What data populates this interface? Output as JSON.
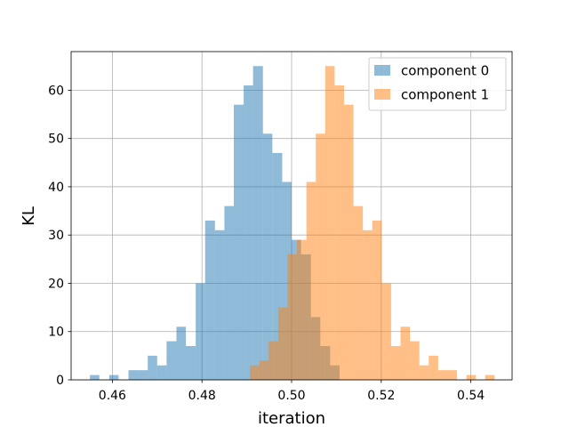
{
  "chart_data": {
    "type": "bar",
    "subtype": "overlapping-histogram",
    "xlabel": "iteration",
    "ylabel": "KL",
    "xlim": [
      0.4508,
      0.5492
    ],
    "ylim": [
      0,
      68
    ],
    "xticks": [
      0.46,
      0.48,
      0.5,
      0.52,
      0.54
    ],
    "xtick_labels": [
      "0.46",
      "0.48",
      "0.50",
      "0.52",
      "0.54"
    ],
    "yticks": [
      0,
      10,
      20,
      30,
      40,
      50,
      60
    ],
    "ytick_labels": [
      "0",
      "10",
      "20",
      "30",
      "40",
      "50",
      "60"
    ],
    "grid": true,
    "legend_position": "top-right",
    "series": [
      {
        "name": "component 0",
        "color": "#1f77b4",
        "opacity": 0.5,
        "bins": [
          {
            "x0": 0.455,
            "x1": 0.4571,
            "count": 1
          },
          {
            "x0": 0.4571,
            "x1": 0.4593,
            "count": 0
          },
          {
            "x0": 0.4593,
            "x1": 0.4614,
            "count": 1
          },
          {
            "x0": 0.4614,
            "x1": 0.4636,
            "count": 0
          },
          {
            "x0": 0.4636,
            "x1": 0.4657,
            "count": 2
          },
          {
            "x0": 0.4657,
            "x1": 0.4679,
            "count": 2
          },
          {
            "x0": 0.4679,
            "x1": 0.47,
            "count": 5
          },
          {
            "x0": 0.47,
            "x1": 0.4721,
            "count": 3
          },
          {
            "x0": 0.4721,
            "x1": 0.4743,
            "count": 8
          },
          {
            "x0": 0.4743,
            "x1": 0.4764,
            "count": 11
          },
          {
            "x0": 0.4764,
            "x1": 0.4786,
            "count": 7
          },
          {
            "x0": 0.4786,
            "x1": 0.4807,
            "count": 20
          },
          {
            "x0": 0.4807,
            "x1": 0.4829,
            "count": 33
          },
          {
            "x0": 0.4829,
            "x1": 0.485,
            "count": 31
          },
          {
            "x0": 0.485,
            "x1": 0.4871,
            "count": 36
          },
          {
            "x0": 0.4871,
            "x1": 0.4893,
            "count": 57
          },
          {
            "x0": 0.4893,
            "x1": 0.4914,
            "count": 61
          },
          {
            "x0": 0.4914,
            "x1": 0.4936,
            "count": 65
          },
          {
            "x0": 0.4936,
            "x1": 0.4957,
            "count": 51
          },
          {
            "x0": 0.4957,
            "x1": 0.4979,
            "count": 47
          },
          {
            "x0": 0.4979,
            "x1": 0.5,
            "count": 41
          },
          {
            "x0": 0.5,
            "x1": 0.5021,
            "count": 29
          },
          {
            "x0": 0.5021,
            "x1": 0.5043,
            "count": 26
          },
          {
            "x0": 0.5043,
            "x1": 0.5064,
            "count": 13
          },
          {
            "x0": 0.5064,
            "x1": 0.5086,
            "count": 7
          },
          {
            "x0": 0.5086,
            "x1": 0.5107,
            "count": 3
          }
        ]
      },
      {
        "name": "component 1",
        "color": "#ff7f0e",
        "opacity": 0.5,
        "bins": [
          {
            "x0": 0.4907,
            "x1": 0.4928,
            "count": 3
          },
          {
            "x0": 0.4928,
            "x1": 0.4949,
            "count": 4
          },
          {
            "x0": 0.4949,
            "x1": 0.497,
            "count": 8
          },
          {
            "x0": 0.497,
            "x1": 0.4991,
            "count": 15
          },
          {
            "x0": 0.4991,
            "x1": 0.5012,
            "count": 26
          },
          {
            "x0": 0.5012,
            "x1": 0.5033,
            "count": 29
          },
          {
            "x0": 0.5033,
            "x1": 0.5054,
            "count": 41
          },
          {
            "x0": 0.5054,
            "x1": 0.5075,
            "count": 51
          },
          {
            "x0": 0.5075,
            "x1": 0.5096,
            "count": 65
          },
          {
            "x0": 0.5096,
            "x1": 0.5117,
            "count": 61
          },
          {
            "x0": 0.5117,
            "x1": 0.5138,
            "count": 57
          },
          {
            "x0": 0.5138,
            "x1": 0.5159,
            "count": 36
          },
          {
            "x0": 0.5159,
            "x1": 0.518,
            "count": 31
          },
          {
            "x0": 0.518,
            "x1": 0.5201,
            "count": 33
          },
          {
            "x0": 0.5201,
            "x1": 0.5222,
            "count": 20
          },
          {
            "x0": 0.5222,
            "x1": 0.5243,
            "count": 7
          },
          {
            "x0": 0.5243,
            "x1": 0.5264,
            "count": 11
          },
          {
            "x0": 0.5264,
            "x1": 0.5285,
            "count": 8
          },
          {
            "x0": 0.5285,
            "x1": 0.5306,
            "count": 3
          },
          {
            "x0": 0.5306,
            "x1": 0.5327,
            "count": 5
          },
          {
            "x0": 0.5327,
            "x1": 0.5348,
            "count": 2
          },
          {
            "x0": 0.5348,
            "x1": 0.5369,
            "count": 2
          },
          {
            "x0": 0.5369,
            "x1": 0.539,
            "count": 0
          },
          {
            "x0": 0.539,
            "x1": 0.5411,
            "count": 1
          },
          {
            "x0": 0.5411,
            "x1": 0.5432,
            "count": 0
          },
          {
            "x0": 0.5432,
            "x1": 0.5453,
            "count": 1
          }
        ]
      }
    ]
  }
}
